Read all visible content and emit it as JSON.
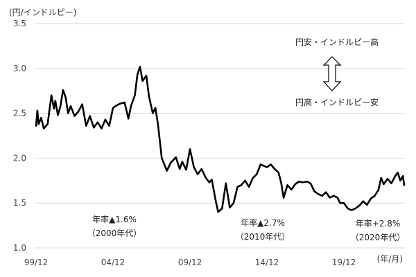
{
  "chart_data": {
    "type": "line",
    "y_unit_label": "(円/インドルピー)",
    "x_unit_label": "(年/月)",
    "ylim": [
      1.0,
      3.5
    ],
    "y_ticks": [
      "1.0",
      "1.5",
      "2.0",
      "2.5",
      "3.0",
      "3.5"
    ],
    "x_ticks": [
      "99/12",
      "04/12",
      "09/12",
      "14/12",
      "19/12"
    ],
    "grid": "horizontal",
    "series": [
      {
        "color": "#000000",
        "points": [
          [
            "1999-12",
            2.36
          ],
          [
            "2000-01",
            2.53
          ],
          [
            "2000-02",
            2.38
          ],
          [
            "2000-04",
            2.45
          ],
          [
            "2000-06",
            2.33
          ],
          [
            "2000-09",
            2.38
          ],
          [
            "2000-12",
            2.7
          ],
          [
            "2001-02",
            2.55
          ],
          [
            "2001-03",
            2.64
          ],
          [
            "2001-05",
            2.48
          ],
          [
            "2001-07",
            2.58
          ],
          [
            "2001-09",
            2.76
          ],
          [
            "2001-11",
            2.68
          ],
          [
            "2002-01",
            2.5
          ],
          [
            "2002-03",
            2.58
          ],
          [
            "2002-06",
            2.47
          ],
          [
            "2002-09",
            2.52
          ],
          [
            "2002-12",
            2.6
          ],
          [
            "2003-03",
            2.36
          ],
          [
            "2003-06",
            2.47
          ],
          [
            "2003-09",
            2.34
          ],
          [
            "2003-12",
            2.4
          ],
          [
            "2004-03",
            2.33
          ],
          [
            "2004-06",
            2.43
          ],
          [
            "2004-09",
            2.36
          ],
          [
            "2004-12",
            2.56
          ],
          [
            "2005-03",
            2.59
          ],
          [
            "2005-06",
            2.61
          ],
          [
            "2005-09",
            2.62
          ],
          [
            "2005-12",
            2.44
          ],
          [
            "2006-02",
            2.58
          ],
          [
            "2006-05",
            2.7
          ],
          [
            "2006-07",
            2.93
          ],
          [
            "2006-09",
            3.02
          ],
          [
            "2006-11",
            2.86
          ],
          [
            "2007-02",
            2.92
          ],
          [
            "2007-04",
            2.69
          ],
          [
            "2007-07",
            2.5
          ],
          [
            "2007-09",
            2.56
          ],
          [
            "2007-11",
            2.38
          ],
          [
            "2008-02",
            2.0
          ],
          [
            "2008-06",
            1.86
          ],
          [
            "2008-09",
            1.95
          ],
          [
            "2009-01",
            2.01
          ],
          [
            "2009-04",
            1.88
          ],
          [
            "2009-06",
            1.96
          ],
          [
            "2009-09",
            1.87
          ],
          [
            "2009-12",
            2.1
          ],
          [
            "2010-03",
            1.9
          ],
          [
            "2010-06",
            1.82
          ],
          [
            "2010-09",
            1.88
          ],
          [
            "2010-12",
            1.79
          ],
          [
            "2011-03",
            1.73
          ],
          [
            "2011-05",
            1.76
          ],
          [
            "2011-08",
            1.53
          ],
          [
            "2011-10",
            1.4
          ],
          [
            "2012-01",
            1.44
          ],
          [
            "2012-04",
            1.72
          ],
          [
            "2012-07",
            1.45
          ],
          [
            "2012-10",
            1.5
          ],
          [
            "2013-01",
            1.68
          ],
          [
            "2013-04",
            1.7
          ],
          [
            "2013-07",
            1.75
          ],
          [
            "2013-10",
            1.68
          ],
          [
            "2014-01",
            1.78
          ],
          [
            "2014-04",
            1.82
          ],
          [
            "2014-07",
            1.93
          ],
          [
            "2014-12",
            1.9
          ],
          [
            "2015-03",
            1.93
          ],
          [
            "2015-06",
            1.88
          ],
          [
            "2015-09",
            1.84
          ],
          [
            "2015-11",
            1.73
          ],
          [
            "2016-01",
            1.56
          ],
          [
            "2016-04",
            1.7
          ],
          [
            "2016-07",
            1.65
          ],
          [
            "2016-10",
            1.71
          ],
          [
            "2017-01",
            1.74
          ],
          [
            "2017-04",
            1.73
          ],
          [
            "2017-07",
            1.74
          ],
          [
            "2017-10",
            1.72
          ],
          [
            "2018-01",
            1.63
          ],
          [
            "2018-04",
            1.6
          ],
          [
            "2018-07",
            1.58
          ],
          [
            "2018-10",
            1.62
          ],
          [
            "2019-01",
            1.56
          ],
          [
            "2019-04",
            1.58
          ],
          [
            "2019-07",
            1.56
          ],
          [
            "2019-09",
            1.5
          ],
          [
            "2019-12",
            1.5
          ],
          [
            "2020-03",
            1.44
          ],
          [
            "2020-06",
            1.42
          ],
          [
            "2020-09",
            1.44
          ],
          [
            "2020-12",
            1.47
          ],
          [
            "2021-03",
            1.52
          ],
          [
            "2021-06",
            1.48
          ],
          [
            "2021-09",
            1.55
          ],
          [
            "2021-12",
            1.58
          ],
          [
            "2022-03",
            1.65
          ],
          [
            "2022-05",
            1.78
          ],
          [
            "2022-07",
            1.71
          ],
          [
            "2022-10",
            1.77
          ],
          [
            "2023-01",
            1.72
          ],
          [
            "2023-04",
            1.8
          ],
          [
            "2023-06",
            1.84
          ],
          [
            "2023-08",
            1.75
          ],
          [
            "2023-10",
            1.8
          ],
          [
            "2023-11",
            1.7
          ]
        ]
      }
    ],
    "annotations": {
      "top_label": "円安・インドルピー高",
      "bottom_label": "円高・インドルピー安",
      "arrow_icon": "double-arrow-up-down-icon",
      "decades": [
        {
          "rate": "年率▲1.6%",
          "period": "（2000年代）"
        },
        {
          "rate": "年率▲2.7%",
          "period": "（2010年代）"
        },
        {
          "rate": "年率+2.8%",
          "period": "（2020年代）"
        }
      ]
    }
  }
}
